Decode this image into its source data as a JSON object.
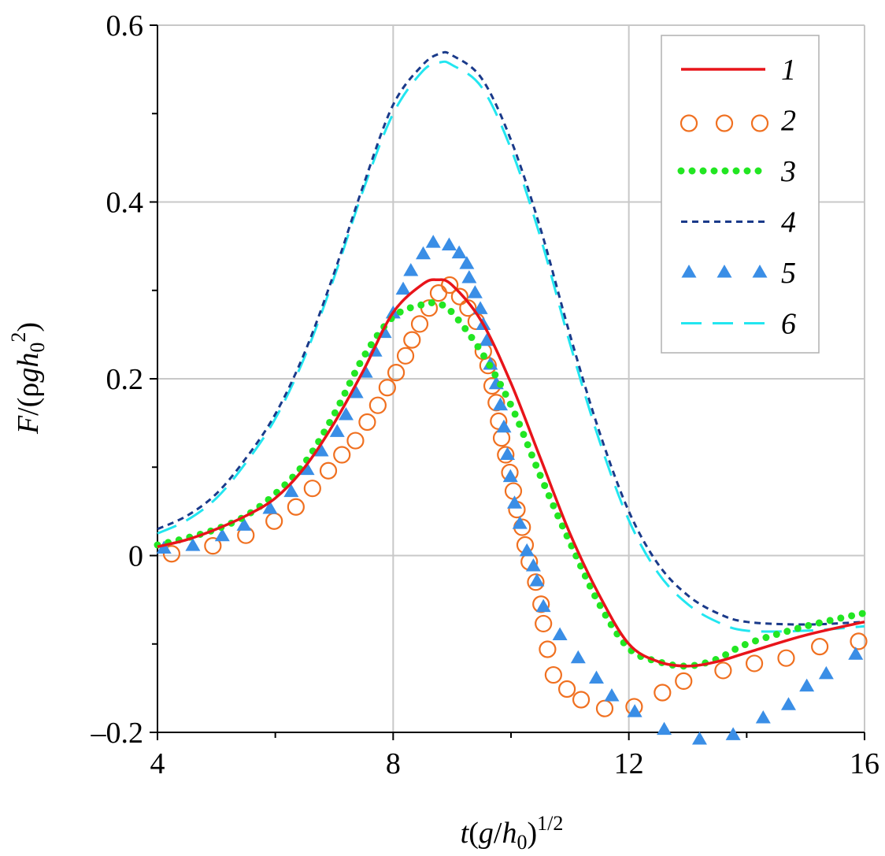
{
  "chart_data": {
    "type": "line",
    "x_label": [
      "t",
      "(",
      "g",
      "/",
      "h",
      "0",
      ")",
      "1/2"
    ],
    "y_label": [
      "F",
      "/(ρ",
      "g",
      "h",
      "0",
      "2",
      ")"
    ],
    "xlim": [
      4,
      16
    ],
    "xticks": [
      4,
      8,
      12,
      16
    ],
    "xminorticks": [
      6,
      10,
      14
    ],
    "ylim": [
      -0.2,
      0.6
    ],
    "yticks": [
      {
        "value": -0.2,
        "label": "–0.2"
      },
      0,
      0.2,
      0.4,
      0.6
    ],
    "yminorticks": [
      -0.1,
      0.1,
      0.3,
      0.5
    ],
    "grid": true,
    "legend": "upper right",
    "series": [
      {
        "name": "6",
        "color": "#22e6f0",
        "style": "long-dash",
        "x": [
          4,
          4.5,
          5,
          5.5,
          6,
          6.5,
          7,
          7.5,
          8,
          8.5,
          8.8,
          9,
          9.5,
          10,
          10.5,
          11,
          11.5,
          12,
          12.5,
          13,
          13.5,
          14,
          15,
          16
        ],
        "values": [
          0.025,
          0.04,
          0.065,
          0.105,
          0.155,
          0.225,
          0.315,
          0.415,
          0.5,
          0.548,
          0.558,
          0.555,
          0.53,
          0.46,
          0.36,
          0.24,
          0.13,
          0.04,
          -0.02,
          -0.055,
          -0.075,
          -0.085,
          -0.085,
          -0.08
        ]
      },
      {
        "name": "4",
        "color": "#1a3a8a",
        "style": "short-dash",
        "x": [
          4,
          4.5,
          5,
          5.5,
          6,
          6.5,
          7,
          7.5,
          8,
          8.5,
          8.8,
          9,
          9.5,
          10,
          10.5,
          11,
          11.5,
          12,
          12.5,
          13,
          13.5,
          14,
          15,
          16
        ],
        "values": [
          0.03,
          0.045,
          0.07,
          0.11,
          0.16,
          0.23,
          0.32,
          0.42,
          0.51,
          0.555,
          0.568,
          0.566,
          0.54,
          0.47,
          0.37,
          0.25,
          0.14,
          0.05,
          -0.01,
          -0.045,
          -0.065,
          -0.075,
          -0.078,
          -0.075
        ]
      },
      {
        "name": "2",
        "color": "#f07020",
        "style": "circle",
        "x": [
          4.24,
          4.94,
          5.5,
          5.98,
          6.35,
          6.63,
          6.9,
          7.13,
          7.36,
          7.56,
          7.74,
          7.9,
          8.05,
          8.21,
          8.32,
          8.45,
          8.61,
          8.77,
          8.96,
          9.13,
          9.27,
          9.41,
          9.53,
          9.61,
          9.68,
          9.75,
          9.79,
          9.84,
          9.91,
          9.98,
          10.04,
          10.1,
          10.19,
          10.24,
          10.31,
          10.42,
          10.51,
          10.55,
          10.62,
          10.72,
          10.95,
          11.19,
          11.59,
          12.09,
          12.57,
          12.93,
          13.6,
          14.13,
          14.67,
          15.24,
          15.9
        ],
        "values": [
          0.002,
          0.011,
          0.023,
          0.039,
          0.055,
          0.076,
          0.096,
          0.114,
          0.13,
          0.151,
          0.17,
          0.19,
          0.207,
          0.226,
          0.244,
          0.262,
          0.28,
          0.297,
          0.306,
          0.293,
          0.28,
          0.265,
          0.231,
          0.215,
          0.192,
          0.173,
          0.152,
          0.133,
          0.114,
          0.094,
          0.073,
          0.052,
          0.032,
          0.012,
          -0.007,
          -0.03,
          -0.055,
          -0.077,
          -0.106,
          -0.135,
          -0.151,
          -0.163,
          -0.173,
          -0.171,
          -0.155,
          -0.142,
          -0.13,
          -0.122,
          -0.116,
          -0.103,
          -0.097
        ]
      },
      {
        "name": "5",
        "color": "#3a8ee6",
        "style": "triangle",
        "x": [
          4.11,
          4.6,
          5.1,
          5.47,
          5.91,
          6.27,
          6.54,
          6.78,
          7.05,
          7.2,
          7.37,
          7.53,
          7.69,
          7.85,
          8.0,
          8.17,
          8.3,
          8.51,
          8.68,
          8.95,
          9.12,
          9.25,
          9.29,
          9.39,
          9.48,
          9.53,
          9.59,
          9.65,
          9.75,
          9.82,
          9.88,
          9.94,
          9.99,
          10.06,
          10.15,
          10.27,
          10.38,
          10.44,
          10.55,
          10.83,
          11.14,
          11.45,
          11.71,
          12.1,
          12.6,
          13.2,
          13.77,
          14.28,
          14.71,
          15.02,
          15.35,
          15.85
        ],
        "values": [
          0.008,
          0.011,
          0.022,
          0.034,
          0.053,
          0.072,
          0.097,
          0.118,
          0.14,
          0.159,
          0.184,
          0.207,
          0.231,
          0.252,
          0.274,
          0.301,
          0.322,
          0.341,
          0.354,
          0.351,
          0.342,
          0.33,
          0.314,
          0.297,
          0.279,
          0.261,
          0.243,
          0.216,
          0.194,
          0.17,
          0.145,
          0.114,
          0.089,
          0.059,
          0.036,
          0.005,
          -0.012,
          -0.029,
          -0.058,
          -0.09,
          -0.116,
          -0.139,
          -0.159,
          -0.177,
          -0.197,
          -0.208,
          -0.203,
          -0.184,
          -0.169,
          -0.148,
          -0.134,
          -0.112
        ]
      },
      {
        "name": "3",
        "color": "#22e622",
        "style": "dots",
        "x": [
          4,
          4.5,
          5,
          5.5,
          6,
          6.5,
          7,
          7.5,
          8,
          8.5,
          8.75,
          9,
          9.5,
          10,
          10.5,
          11,
          11.5,
          12,
          12.5,
          13,
          13.5,
          14,
          15,
          16
        ],
        "values": [
          0.012,
          0.02,
          0.03,
          0.045,
          0.07,
          0.105,
          0.16,
          0.225,
          0.27,
          0.284,
          0.285,
          0.275,
          0.23,
          0.17,
          0.09,
          0.015,
          -0.055,
          -0.105,
          -0.12,
          -0.125,
          -0.117,
          -0.1,
          -0.08,
          -0.065
        ]
      },
      {
        "name": "1",
        "color": "#e8141a",
        "style": "solid",
        "x": [
          4,
          4.5,
          5,
          5.5,
          6,
          6.5,
          7,
          7.5,
          8,
          8.5,
          8.75,
          9,
          9.5,
          10,
          10.5,
          11,
          11.5,
          12,
          12.5,
          13,
          13.5,
          14,
          15,
          16
        ],
        "values": [
          0.01,
          0.018,
          0.03,
          0.045,
          0.065,
          0.1,
          0.15,
          0.21,
          0.275,
          0.307,
          0.312,
          0.306,
          0.265,
          0.195,
          0.11,
          0.025,
          -0.045,
          -0.1,
          -0.12,
          -0.125,
          -0.12,
          -0.11,
          -0.09,
          -0.075
        ]
      }
    ],
    "legend_order": [
      5,
      2,
      4,
      1,
      3,
      0
    ]
  }
}
